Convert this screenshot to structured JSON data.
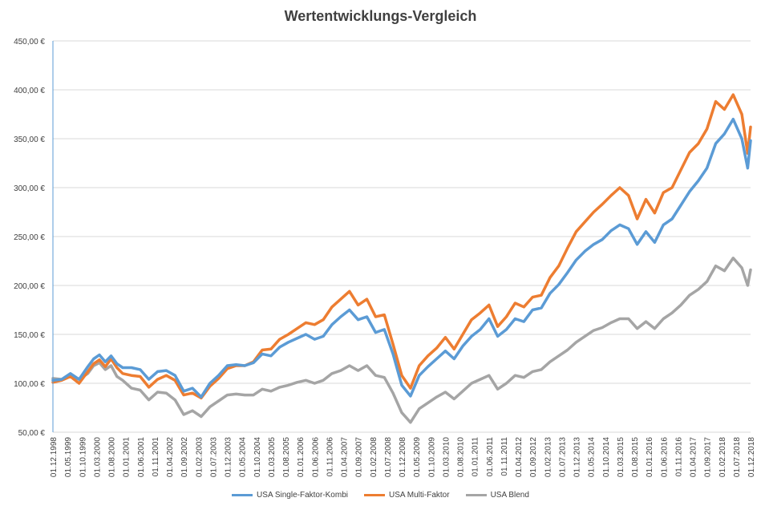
{
  "chart_data": {
    "type": "line",
    "title": "Wertentwicklungs-Vergleich",
    "ylim": [
      50,
      450
    ],
    "y_ticks": [
      "50,00 €",
      "100,00 €",
      "150,00 €",
      "200,00 €",
      "250,00 €",
      "300,00 €",
      "350,00 €",
      "400,00 €",
      "450,00 €"
    ],
    "y_tick_values": [
      50,
      100,
      150,
      200,
      250,
      300,
      350,
      400,
      450
    ],
    "x_tick_labels": [
      "01.12.1998",
      "01.05.1999",
      "01.10.1999",
      "01.03.2000",
      "01.08.2000",
      "01.01.2001",
      "01.06.2001",
      "01.11.2001",
      "01.04.2002",
      "01.09.2002",
      "01.02.2003",
      "01.07.2003",
      "01.12.2003",
      "01.05.2004",
      "01.10.2004",
      "01.03.2005",
      "01.08.2005",
      "01.01.2006",
      "01.06.2006",
      "01.11.2006",
      "01.04.2007",
      "01.09.2007",
      "01.02.2008",
      "01.07.2008",
      "01.12.2008",
      "01.05.2009",
      "01.10.2009",
      "01.03.2010",
      "01.08.2010",
      "01.01.2011",
      "01.06.2011",
      "01.11.2011",
      "01.04.2012",
      "01.09.2012",
      "01.02.2013",
      "01.07.2013",
      "01.12.2013",
      "01.05.2014",
      "01.10.2014",
      "01.03.2015",
      "01.08.2015",
      "01.01.2016",
      "01.06.2016",
      "01.11.2016",
      "01.04.2017",
      "01.09.2017",
      "01.02.2018",
      "01.07.2018",
      "01.12.2018"
    ],
    "x_start": "1998-12",
    "x_end": "2018-12",
    "grid": true,
    "legend_position": "bottom",
    "series": [
      {
        "name": "USA Single-Faktor-Kombi",
        "color": "#5B9BD5",
        "points": [
          [
            "1998-12",
            103
          ],
          [
            "1999-03",
            104
          ],
          [
            "1999-06",
            110
          ],
          [
            "1999-09",
            104
          ],
          [
            "1999-12",
            117
          ],
          [
            "2000-02",
            125
          ],
          [
            "2000-04",
            129
          ],
          [
            "2000-06",
            122
          ],
          [
            "2000-08",
            128
          ],
          [
            "2000-10",
            120
          ],
          [
            "2000-12",
            116
          ],
          [
            "2001-03",
            116
          ],
          [
            "2001-06",
            114
          ],
          [
            "2001-09",
            104
          ],
          [
            "2001-12",
            112
          ],
          [
            "2002-03",
            113
          ],
          [
            "2002-06",
            108
          ],
          [
            "2002-09",
            92
          ],
          [
            "2002-12",
            95
          ],
          [
            "2003-03",
            86
          ],
          [
            "2003-06",
            100
          ],
          [
            "2003-09",
            108
          ],
          [
            "2003-12",
            118
          ],
          [
            "2004-03",
            119
          ],
          [
            "2004-06",
            118
          ],
          [
            "2004-09",
            121
          ],
          [
            "2004-12",
            130
          ],
          [
            "2005-03",
            128
          ],
          [
            "2005-06",
            137
          ],
          [
            "2005-09",
            142
          ],
          [
            "2005-12",
            146
          ],
          [
            "2006-03",
            150
          ],
          [
            "2006-06",
            145
          ],
          [
            "2006-09",
            148
          ],
          [
            "2006-12",
            160
          ],
          [
            "2007-03",
            168
          ],
          [
            "2007-06",
            175
          ],
          [
            "2007-09",
            165
          ],
          [
            "2007-12",
            168
          ],
          [
            "2008-03",
            152
          ],
          [
            "2008-06",
            155
          ],
          [
            "2008-09",
            130
          ],
          [
            "2008-12",
            98
          ],
          [
            "2009-03",
            87
          ],
          [
            "2009-06",
            108
          ],
          [
            "2009-09",
            117
          ],
          [
            "2009-12",
            125
          ],
          [
            "2010-03",
            133
          ],
          [
            "2010-06",
            125
          ],
          [
            "2010-09",
            138
          ],
          [
            "2010-12",
            148
          ],
          [
            "2011-03",
            155
          ],
          [
            "2011-06",
            166
          ],
          [
            "2011-09",
            148
          ],
          [
            "2011-12",
            155
          ],
          [
            "2012-03",
            166
          ],
          [
            "2012-06",
            163
          ],
          [
            "2012-09",
            175
          ],
          [
            "2012-12",
            177
          ],
          [
            "2013-03",
            192
          ],
          [
            "2013-06",
            201
          ],
          [
            "2013-09",
            213
          ],
          [
            "2013-12",
            226
          ],
          [
            "2014-03",
            235
          ],
          [
            "2014-06",
            242
          ],
          [
            "2014-09",
            247
          ],
          [
            "2014-12",
            256
          ],
          [
            "2015-03",
            262
          ],
          [
            "2015-06",
            258
          ],
          [
            "2015-09",
            242
          ],
          [
            "2015-12",
            255
          ],
          [
            "2016-03",
            244
          ],
          [
            "2016-06",
            262
          ],
          [
            "2016-09",
            268
          ],
          [
            "2016-12",
            282
          ],
          [
            "2017-03",
            296
          ],
          [
            "2017-06",
            307
          ],
          [
            "2017-09",
            320
          ],
          [
            "2017-12",
            345
          ],
          [
            "2018-03",
            355
          ],
          [
            "2018-06",
            370
          ],
          [
            "2018-09",
            350
          ],
          [
            "2018-11",
            320
          ],
          [
            "2018-12",
            348
          ]
        ]
      },
      {
        "name": "USA Multi-Faktor",
        "color": "#ED7D31",
        "points": [
          [
            "1998-12",
            101
          ],
          [
            "1999-03",
            103
          ],
          [
            "1999-06",
            107
          ],
          [
            "1999-09",
            100
          ],
          [
            "1999-12",
            112
          ],
          [
            "2000-02",
            120
          ],
          [
            "2000-04",
            124
          ],
          [
            "2000-06",
            117
          ],
          [
            "2000-08",
            125
          ],
          [
            "2000-10",
            116
          ],
          [
            "2000-12",
            110
          ],
          [
            "2001-03",
            108
          ],
          [
            "2001-06",
            107
          ],
          [
            "2001-09",
            96
          ],
          [
            "2001-12",
            104
          ],
          [
            "2002-03",
            108
          ],
          [
            "2002-06",
            103
          ],
          [
            "2002-09",
            88
          ],
          [
            "2002-12",
            90
          ],
          [
            "2003-03",
            85
          ],
          [
            "2003-06",
            97
          ],
          [
            "2003-09",
            105
          ],
          [
            "2003-12",
            115
          ],
          [
            "2004-03",
            118
          ],
          [
            "2004-06",
            118
          ],
          [
            "2004-09",
            122
          ],
          [
            "2004-12",
            134
          ],
          [
            "2005-03",
            135
          ],
          [
            "2005-06",
            145
          ],
          [
            "2005-09",
            150
          ],
          [
            "2005-12",
            156
          ],
          [
            "2006-03",
            162
          ],
          [
            "2006-06",
            160
          ],
          [
            "2006-09",
            165
          ],
          [
            "2006-12",
            178
          ],
          [
            "2007-03",
            186
          ],
          [
            "2007-06",
            194
          ],
          [
            "2007-09",
            180
          ],
          [
            "2007-12",
            186
          ],
          [
            "2008-03",
            168
          ],
          [
            "2008-06",
            170
          ],
          [
            "2008-09",
            140
          ],
          [
            "2008-12",
            108
          ],
          [
            "2009-03",
            95
          ],
          [
            "2009-06",
            118
          ],
          [
            "2009-09",
            128
          ],
          [
            "2009-12",
            136
          ],
          [
            "2010-03",
            147
          ],
          [
            "2010-06",
            135
          ],
          [
            "2010-09",
            150
          ],
          [
            "2010-12",
            165
          ],
          [
            "2011-03",
            172
          ],
          [
            "2011-06",
            180
          ],
          [
            "2011-09",
            158
          ],
          [
            "2011-12",
            168
          ],
          [
            "2012-03",
            182
          ],
          [
            "2012-06",
            178
          ],
          [
            "2012-09",
            188
          ],
          [
            "2012-12",
            190
          ],
          [
            "2013-03",
            208
          ],
          [
            "2013-06",
            220
          ],
          [
            "2013-09",
            238
          ],
          [
            "2013-12",
            255
          ],
          [
            "2014-03",
            265
          ],
          [
            "2014-06",
            275
          ],
          [
            "2014-09",
            283
          ],
          [
            "2014-12",
            292
          ],
          [
            "2015-03",
            300
          ],
          [
            "2015-06",
            292
          ],
          [
            "2015-09",
            268
          ],
          [
            "2015-12",
            288
          ],
          [
            "2016-03",
            274
          ],
          [
            "2016-06",
            295
          ],
          [
            "2016-09",
            300
          ],
          [
            "2016-12",
            318
          ],
          [
            "2017-03",
            336
          ],
          [
            "2017-06",
            345
          ],
          [
            "2017-09",
            360
          ],
          [
            "2017-12",
            388
          ],
          [
            "2018-03",
            380
          ],
          [
            "2018-06",
            395
          ],
          [
            "2018-09",
            375
          ],
          [
            "2018-11",
            335
          ],
          [
            "2018-12",
            362
          ]
        ]
      },
      {
        "name": "USA Blend",
        "color": "#A5A5A5",
        "points": [
          [
            "1998-12",
            105
          ],
          [
            "1999-03",
            104
          ],
          [
            "1999-06",
            108
          ],
          [
            "1999-09",
            104
          ],
          [
            "1999-12",
            110
          ],
          [
            "2000-02",
            118
          ],
          [
            "2000-04",
            121
          ],
          [
            "2000-06",
            114
          ],
          [
            "2000-08",
            118
          ],
          [
            "2000-10",
            107
          ],
          [
            "2000-12",
            103
          ],
          [
            "2001-03",
            95
          ],
          [
            "2001-06",
            93
          ],
          [
            "2001-09",
            83
          ],
          [
            "2001-12",
            91
          ],
          [
            "2002-03",
            90
          ],
          [
            "2002-06",
            83
          ],
          [
            "2002-09",
            68
          ],
          [
            "2002-12",
            72
          ],
          [
            "2003-03",
            66
          ],
          [
            "2003-06",
            76
          ],
          [
            "2003-09",
            82
          ],
          [
            "2003-12",
            88
          ],
          [
            "2004-03",
            89
          ],
          [
            "2004-06",
            88
          ],
          [
            "2004-09",
            88
          ],
          [
            "2004-12",
            94
          ],
          [
            "2005-03",
            92
          ],
          [
            "2005-06",
            96
          ],
          [
            "2005-09",
            98
          ],
          [
            "2005-12",
            101
          ],
          [
            "2006-03",
            103
          ],
          [
            "2006-06",
            100
          ],
          [
            "2006-09",
            103
          ],
          [
            "2006-12",
            110
          ],
          [
            "2007-03",
            113
          ],
          [
            "2007-06",
            118
          ],
          [
            "2007-09",
            113
          ],
          [
            "2007-12",
            118
          ],
          [
            "2008-03",
            108
          ],
          [
            "2008-06",
            106
          ],
          [
            "2008-09",
            90
          ],
          [
            "2008-12",
            70
          ],
          [
            "2009-03",
            60
          ],
          [
            "2009-06",
            74
          ],
          [
            "2009-09",
            80
          ],
          [
            "2009-12",
            86
          ],
          [
            "2010-03",
            91
          ],
          [
            "2010-06",
            84
          ],
          [
            "2010-09",
            92
          ],
          [
            "2010-12",
            100
          ],
          [
            "2011-03",
            104
          ],
          [
            "2011-06",
            108
          ],
          [
            "2011-09",
            94
          ],
          [
            "2011-12",
            100
          ],
          [
            "2012-03",
            108
          ],
          [
            "2012-06",
            106
          ],
          [
            "2012-09",
            112
          ],
          [
            "2012-12",
            114
          ],
          [
            "2013-03",
            122
          ],
          [
            "2013-06",
            128
          ],
          [
            "2013-09",
            134
          ],
          [
            "2013-12",
            142
          ],
          [
            "2014-03",
            148
          ],
          [
            "2014-06",
            154
          ],
          [
            "2014-09",
            157
          ],
          [
            "2014-12",
            162
          ],
          [
            "2015-03",
            166
          ],
          [
            "2015-06",
            166
          ],
          [
            "2015-09",
            156
          ],
          [
            "2015-12",
            163
          ],
          [
            "2016-03",
            156
          ],
          [
            "2016-06",
            166
          ],
          [
            "2016-09",
            172
          ],
          [
            "2016-12",
            180
          ],
          [
            "2017-03",
            190
          ],
          [
            "2017-06",
            196
          ],
          [
            "2017-09",
            204
          ],
          [
            "2017-12",
            220
          ],
          [
            "2018-03",
            215
          ],
          [
            "2018-06",
            228
          ],
          [
            "2018-09",
            218
          ],
          [
            "2018-11",
            200
          ],
          [
            "2018-12",
            216
          ]
        ]
      }
    ]
  }
}
